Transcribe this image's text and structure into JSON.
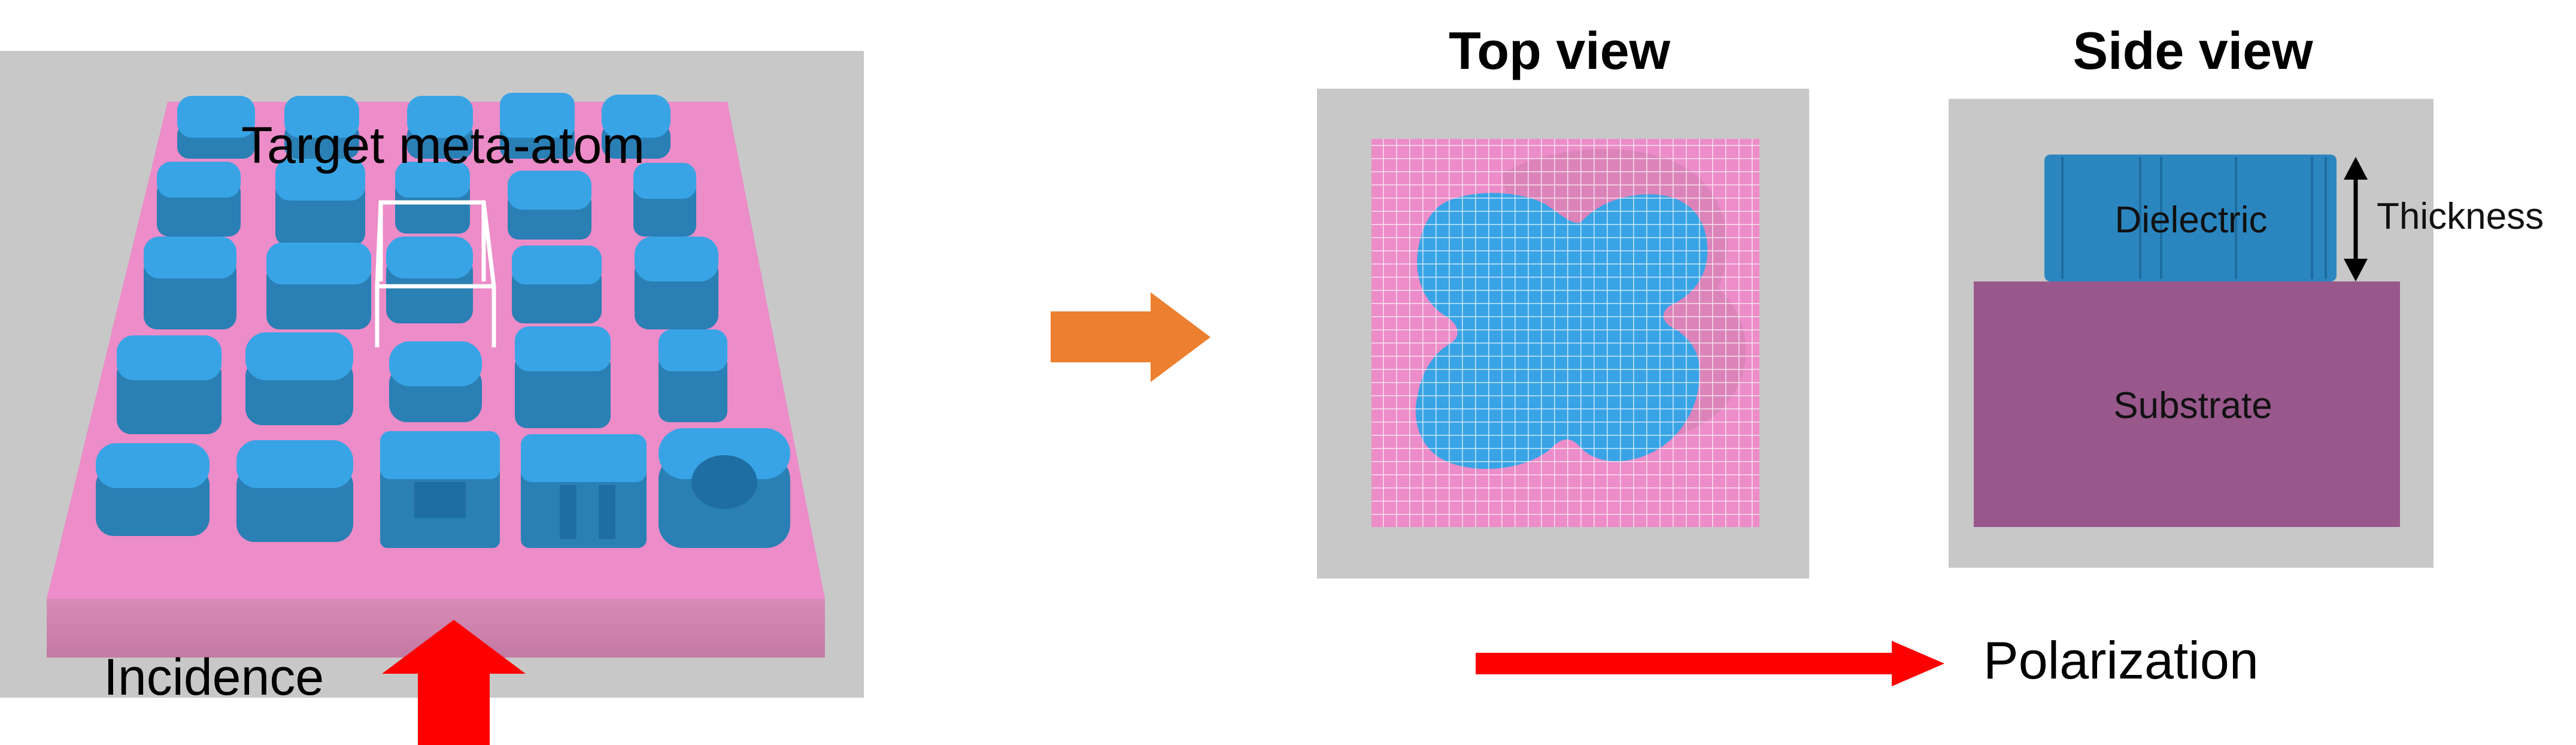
{
  "labels": {
    "target_meta_atom": "Target meta-atom",
    "incidence": "Incidence",
    "top_view": "Top view",
    "side_view": "Side view",
    "dielectric": "Dielectric",
    "thickness": "Thickness",
    "substrate": "Substrate",
    "polarization": "Polarization"
  },
  "colors": {
    "panel_gray": "#c8c8c8",
    "substrate_pink": "#ec8cc8",
    "substrate_pink_dark": "#c97aa8",
    "meta_atom_blue": "#38a4e6",
    "meta_atom_blue_dark": "#2a7fb4",
    "dielectric_blue": "#2b86c0",
    "substrate_purple": "#98588c",
    "flow_arrow_orange": "#ec7f30",
    "incidence_arrow_red": "#ff0000",
    "polarization_arrow_red": "#ff0000",
    "thickness_arrow": "#000000",
    "target_box": "#ffffff"
  },
  "icons": {
    "flow_arrow": "right-arrow-icon",
    "incidence_arrow": "up-arrow-icon",
    "polarization_arrow": "right-arrow-icon",
    "thickness_arrow": "double-headed-vertical-arrow-icon"
  }
}
